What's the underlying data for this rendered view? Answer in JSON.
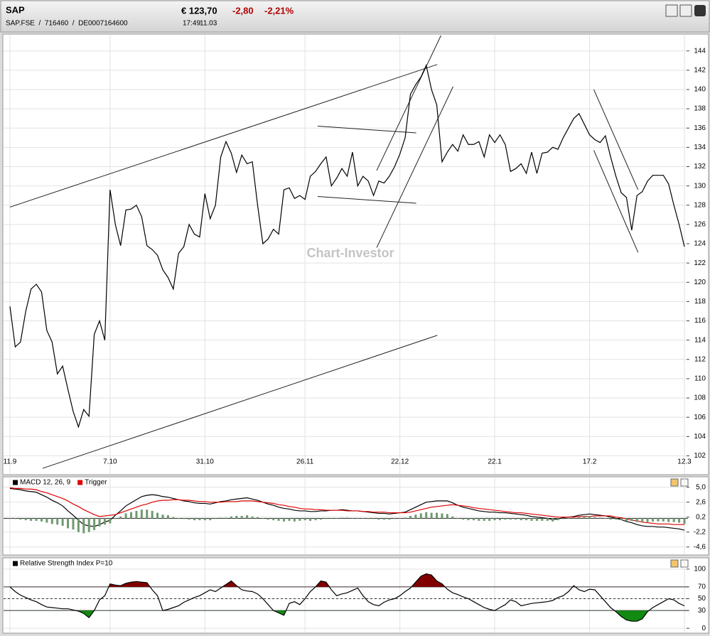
{
  "header": {
    "symbol": "SAP",
    "price": "€ 123,70",
    "change": "-2,80",
    "change_pct": "-2,21%",
    "ids": "SAP.FSE  /  716460  /  DE0007164600",
    "time": "17:49",
    "date": "11.03"
  },
  "chart_data": [
    {
      "type": "line",
      "watermark": "Chart-Investor",
      "categories": [
        "11.9",
        null,
        null,
        null,
        null,
        null,
        null,
        null,
        null,
        null,
        null,
        null,
        null,
        null,
        null,
        null,
        null,
        null,
        null,
        "7.10",
        null,
        null,
        null,
        null,
        null,
        null,
        null,
        null,
        null,
        null,
        null,
        null,
        null,
        null,
        null,
        null,
        null,
        "31.10",
        null,
        null,
        null,
        null,
        null,
        null,
        null,
        null,
        null,
        null,
        null,
        null,
        null,
        null,
        null,
        null,
        null,
        null,
        "26.11",
        null,
        null,
        null,
        null,
        null,
        null,
        null,
        null,
        null,
        null,
        null,
        null,
        null,
        null,
        null,
        null,
        null,
        "22.12",
        null,
        null,
        null,
        null,
        null,
        null,
        null,
        null,
        null,
        null,
        null,
        null,
        null,
        null,
        null,
        null,
        null,
        "22.1",
        null,
        null,
        null,
        null,
        null,
        null,
        null,
        null,
        null,
        null,
        null,
        null,
        null,
        null,
        null,
        null,
        null,
        "17.2",
        null,
        null,
        null,
        null,
        null,
        null,
        null,
        null,
        null,
        null,
        null,
        null,
        null,
        null,
        null,
        null,
        null,
        "12.3"
      ],
      "series": [
        {
          "color": "#000000",
          "values": [
            117.5,
            113.3,
            113.8,
            117,
            119.3,
            119.8,
            119,
            115,
            113.8,
            110.5,
            111.3,
            108.9,
            106.6,
            105,
            106.8,
            106.1,
            114.6,
            116,
            114,
            129.6,
            126,
            123.8,
            127.5,
            127.6,
            128,
            126.8,
            123.8,
            123.4,
            122.8,
            121.3,
            120.5,
            119.3,
            123,
            123.7,
            126,
            125,
            124.7,
            129.2,
            126.6,
            128,
            133,
            134.6,
            133.4,
            131.4,
            133.2,
            132.3,
            132.5,
            128,
            124,
            124.5,
            125.5,
            125,
            129.6,
            129.8,
            128.7,
            129,
            128.6,
            131,
            131.5,
            132.3,
            133,
            130,
            130.8,
            131.8,
            131,
            133.5,
            130,
            131,
            130.5,
            129,
            130.5,
            130.3,
            131,
            132,
            133.3,
            135,
            139.5,
            140.5,
            141.3,
            142.5,
            140,
            138.4,
            132.5,
            133.5,
            134.3,
            133.6,
            135.3,
            134.3,
            134.3,
            134.6,
            133,
            135.3,
            134.5,
            135.3,
            134.3,
            131.5,
            131.8,
            132.3,
            131.3,
            133.5,
            131.3,
            133.4,
            133.5,
            134,
            133.8,
            135,
            136,
            137,
            137.5,
            136.4,
            135.3,
            134.8,
            134.5,
            135.2,
            133,
            131,
            129.3,
            128.8,
            125.4,
            129,
            129.4,
            130.5,
            131.1,
            131.1,
            131.1,
            130.2,
            128,
            126,
            123.7
          ]
        }
      ],
      "trendlines": [
        {
          "x": [
            0,
            81.1
          ],
          "y": [
            127.8,
            142.6
          ]
        },
        {
          "x": [
            6.2,
            81.1
          ],
          "y": [
            100.7,
            114.5
          ]
        },
        {
          "x": [
            58.4,
            77.1
          ],
          "y": [
            136.2,
            135.5
          ]
        },
        {
          "x": [
            58.4,
            77.1
          ],
          "y": [
            128.9,
            128.2
          ]
        },
        {
          "x": [
            69.6,
            81.8
          ],
          "y": [
            131.6,
            145.6
          ]
        },
        {
          "x": [
            69.6,
            84.1
          ],
          "y": [
            123.6,
            140.3
          ]
        },
        {
          "x": [
            110.8,
            119.2
          ],
          "y": [
            140,
            129.6
          ]
        },
        {
          "x": [
            110.8,
            119.2
          ],
          "y": [
            133.7,
            123.1
          ]
        }
      ],
      "ylim": [
        101,
        145.6
      ],
      "yticks": [
        102,
        104,
        106,
        108,
        110,
        112,
        114,
        116,
        118,
        120,
        122,
        124,
        126,
        128,
        130,
        132,
        134,
        136,
        138,
        140,
        142,
        144
      ],
      "grid": true
    },
    {
      "type": "line",
      "series": [
        {
          "name": "MACD 12, 26, 9",
          "color": "#000000",
          "values": [
            4.8,
            4.7,
            4.6,
            4.4,
            4.3,
            4.2,
            3.8,
            3.4,
            2.9,
            2.5,
            2.0,
            1.2,
            0.5,
            -0.3,
            -1.0,
            -1.2,
            -1.3,
            -1.0,
            -0.6,
            -0.3,
            0.5,
            1.2,
            2.0,
            2.5,
            3.0,
            3.5,
            3.7,
            3.8,
            3.7,
            3.5,
            3.4,
            3.2,
            3.0,
            2.8,
            2.7,
            2.5,
            2.4,
            2.4,
            2.3,
            2.5,
            2.7,
            2.8,
            3.0,
            3.1,
            3.2,
            3.3,
            3.1,
            2.9,
            2.6,
            2.3,
            2.1,
            1.8,
            1.6,
            1.5,
            1.3,
            1.2,
            1.2,
            1.1,
            1.1,
            1.2,
            1.2,
            1.3,
            1.3,
            1.4,
            1.3,
            1.2,
            1.2,
            1.1,
            1.0,
            0.9,
            0.8,
            0.8,
            0.7,
            0.8,
            0.9,
            1.0,
            1.4,
            1.8,
            2.2,
            2.6,
            2.7,
            2.8,
            2.8,
            2.8,
            2.5,
            2.1,
            1.8,
            1.6,
            1.4,
            1.2,
            1.1,
            1.0,
            1.0,
            0.9,
            0.9,
            0.8,
            0.7,
            0.6,
            0.5,
            0.3,
            0.2,
            0.1,
            0.0,
            -0.2,
            -0.1,
            0.1,
            0.2,
            0.3,
            0.5,
            0.6,
            0.7,
            0.6,
            0.5,
            0.4,
            0.2,
            0.0,
            -0.2,
            -0.5,
            -0.7,
            -1.0,
            -1.2,
            -1.3,
            -1.3,
            -1.4,
            -1.4,
            -1.5,
            -1.6,
            -1.7,
            -1.9
          ]
        },
        {
          "name": "Trigger",
          "color": "#e00000",
          "values": [
            4.9,
            4.8,
            4.8,
            4.7,
            4.7,
            4.6,
            4.3,
            4.1,
            3.8,
            3.5,
            3.2,
            2.8,
            2.3,
            1.9,
            1.4,
            1.0,
            0.6,
            0.3,
            0.4,
            0.5,
            0.6,
            0.9,
            1.2,
            1.5,
            1.8,
            2.1,
            2.3,
            2.6,
            2.8,
            2.9,
            2.9,
            3.0,
            3.0,
            2.9,
            2.9,
            2.8,
            2.7,
            2.7,
            2.6,
            2.6,
            2.6,
            2.7,
            2.7,
            2.7,
            2.8,
            2.8,
            2.8,
            2.7,
            2.6,
            2.5,
            2.4,
            2.2,
            2.1,
            1.9,
            1.8,
            1.6,
            1.5,
            1.5,
            1.4,
            1.4,
            1.3,
            1.3,
            1.3,
            1.3,
            1.2,
            1.2,
            1.2,
            1.1,
            1.1,
            1.0,
            1.0,
            1.0,
            0.9,
            0.9,
            0.9,
            0.9,
            1.0,
            1.2,
            1.4,
            1.6,
            1.8,
            1.9,
            2.0,
            2.1,
            2.2,
            2.1,
            2.0,
            1.9,
            1.7,
            1.6,
            1.5,
            1.4,
            1.3,
            1.2,
            1.1,
            1.0,
            0.9,
            0.9,
            0.8,
            0.7,
            0.6,
            0.5,
            0.4,
            0.3,
            0.2,
            0.2,
            0.2,
            0.2,
            0.3,
            0.3,
            0.3,
            0.4,
            0.4,
            0.4,
            0.4,
            0.2,
            0.1,
            -0.1,
            -0.3,
            -0.4,
            -0.6,
            -0.7,
            -0.8,
            -0.9,
            -0.9,
            -0.9,
            -1.0,
            -1.0,
            -1.0
          ]
        },
        {
          "style": "bar",
          "color": "#6f9a6f",
          "values": [
            -0.1,
            -0.1,
            -0.2,
            -0.3,
            -0.4,
            -0.4,
            -0.5,
            -0.7,
            -0.9,
            -1.0,
            -1.2,
            -1.6,
            -1.8,
            -2.2,
            -2.4,
            -2.2,
            -1.9,
            -1.3,
            -1.0,
            -0.8,
            -0.1,
            0.3,
            0.8,
            1.0,
            1.2,
            1.4,
            1.4,
            1.2,
            0.9,
            0.6,
            0.5,
            0.2,
            0.0,
            -0.1,
            -0.2,
            -0.3,
            -0.3,
            -0.3,
            -0.3,
            -0.1,
            0.1,
            0.1,
            0.3,
            0.4,
            0.4,
            0.5,
            0.3,
            0.2,
            0.0,
            -0.2,
            -0.3,
            -0.4,
            -0.5,
            -0.4,
            -0.5,
            -0.4,
            -0.3,
            -0.4,
            -0.3,
            -0.2,
            -0.1,
            0.0,
            0.0,
            0.1,
            0.1,
            0.0,
            0.0,
            0.0,
            -0.1,
            -0.1,
            -0.2,
            -0.2,
            -0.2,
            -0.1,
            0.0,
            0.1,
            0.4,
            0.6,
            0.8,
            1.0,
            0.9,
            0.9,
            0.8,
            0.7,
            0.3,
            0.0,
            -0.2,
            -0.3,
            -0.3,
            -0.4,
            -0.4,
            -0.4,
            -0.3,
            -0.3,
            -0.2,
            -0.2,
            -0.2,
            -0.3,
            -0.3,
            -0.4,
            -0.4,
            -0.4,
            -0.4,
            -0.5,
            -0.3,
            -0.1,
            0.0,
            0.1,
            0.2,
            0.3,
            0.4,
            0.2,
            0.1,
            0.0,
            -0.2,
            -0.2,
            -0.3,
            -0.4,
            -0.4,
            -0.6,
            -0.6,
            -0.6,
            -0.5,
            -0.5,
            -0.5,
            -0.6,
            -0.6,
            -0.7,
            -0.9
          ]
        }
      ],
      "ylim": [
        -5.2,
        6.1
      ],
      "yticks": [
        {
          "value": 5,
          "label": "5,0"
        },
        {
          "value": 2.6,
          "label": "2,6"
        },
        {
          "value": 0.2,
          "label": "0,2"
        },
        {
          "value": -2.2,
          "label": "-2,2"
        },
        {
          "value": -4.6,
          "label": "-4,6"
        }
      ],
      "grid": true
    },
    {
      "type": "line",
      "series": [
        {
          "name": "Relative Strength Index P=10",
          "color": "#000000",
          "values": [
            70,
            62,
            56,
            52,
            48,
            45,
            40,
            36,
            35,
            34,
            33,
            33,
            31,
            29,
            25,
            18,
            30,
            48,
            55,
            75,
            73,
            72,
            76,
            78,
            79,
            78,
            77,
            65,
            55,
            30,
            32,
            35,
            38,
            44,
            48,
            52,
            55,
            60,
            65,
            62,
            68,
            74,
            80,
            72,
            65,
            63,
            62,
            58,
            50,
            40,
            30,
            26,
            22,
            42,
            45,
            40,
            50,
            62,
            70,
            80,
            78,
            65,
            55,
            58,
            60,
            64,
            68,
            55,
            45,
            40,
            38,
            44,
            48,
            50,
            55,
            62,
            68,
            78,
            88,
            92,
            90,
            80,
            75,
            66,
            60,
            57,
            53,
            50,
            45,
            40,
            35,
            32,
            30,
            35,
            40,
            48,
            45,
            38,
            40,
            42,
            43,
            44,
            45,
            47,
            52,
            55,
            62,
            72,
            65,
            62,
            66,
            65,
            55,
            45,
            35,
            28,
            20,
            14,
            12,
            12,
            16,
            28,
            35,
            40,
            45,
            50,
            48,
            42,
            38
          ]
        }
      ],
      "levels": [
        70,
        50,
        30
      ],
      "level_styles": [
        "solid",
        "dashed",
        "solid"
      ],
      "upper_fill": "#800000",
      "lower_fill": "#128a12",
      "ylim": [
        -7,
        101
      ],
      "yticks": [
        100,
        70,
        50,
        30,
        0
      ],
      "grid": true
    }
  ]
}
